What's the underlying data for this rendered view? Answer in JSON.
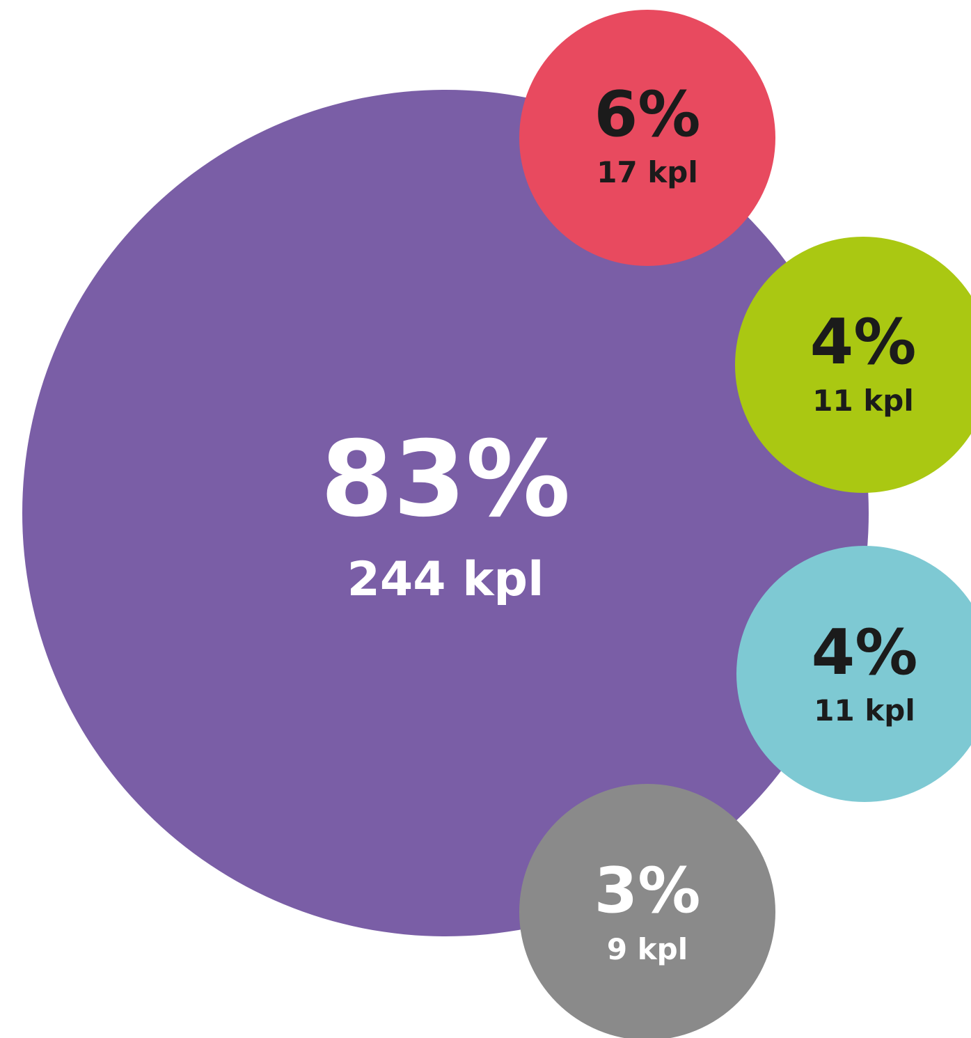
{
  "chart_data": {
    "type": "bubble",
    "title": "",
    "items": [
      {
        "percent_label": "83%",
        "count_label": "244 kpl",
        "percent": 83,
        "count": 244,
        "color": "#7a5ea6",
        "text_color": "#ffffff"
      },
      {
        "percent_label": "6%",
        "count_label": "17 kpl",
        "percent": 6,
        "count": 17,
        "color": "#e84a5f",
        "text_color": "#1b1b1b"
      },
      {
        "percent_label": "4%",
        "count_label": "11 kpl",
        "percent": 4,
        "count": 11,
        "color": "#aac812",
        "text_color": "#1b1b1b"
      },
      {
        "percent_label": "4%",
        "count_label": "11 kpl",
        "percent": 4,
        "count": 11,
        "color": "#7ec9d3",
        "text_color": "#1b1b1b"
      },
      {
        "percent_label": "3%",
        "count_label": "9 kpl",
        "percent": 3,
        "count": 9,
        "color": "#8a8a8a",
        "text_color": "#ffffff"
      }
    ]
  }
}
